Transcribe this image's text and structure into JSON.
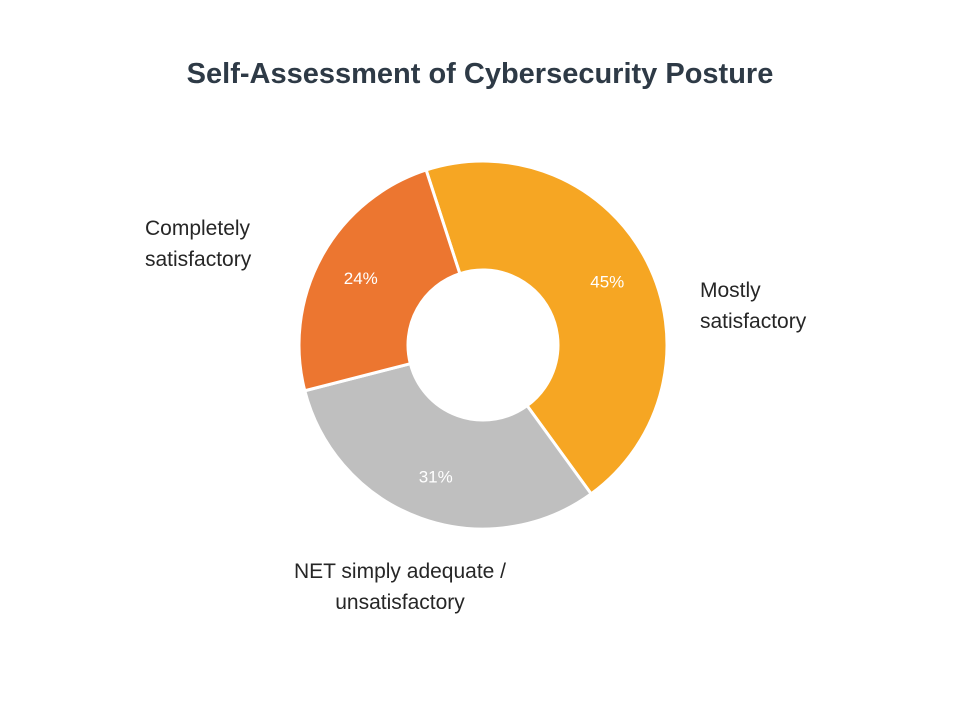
{
  "chart_data": {
    "type": "pie",
    "donut": true,
    "title": "Self-Assessment of Cybersecurity Posture",
    "categories": [
      "Mostly\nsatisfactory",
      "NET simply adequate /\nunsatisfactory",
      "Completely\nsatisfactory"
    ],
    "values": [
      45,
      31,
      24
    ],
    "value_labels": [
      "45%",
      "31%",
      "24%"
    ],
    "colors": [
      "#f6a623",
      "#bfbfbf",
      "#ec7630"
    ],
    "legend": "none"
  }
}
